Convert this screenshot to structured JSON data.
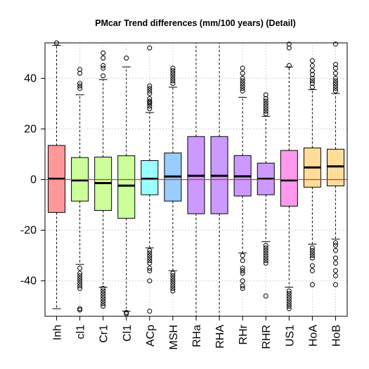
{
  "chart_data": {
    "type": "boxplot",
    "title": "PMcar Trend differences (mm/100 years) (Detail)",
    "xlabel": "",
    "ylabel": "",
    "ylim": [
      -54,
      54
    ],
    "yticks": [
      -40,
      -20,
      0,
      20,
      40
    ],
    "grid": true,
    "reference_line": {
      "y": 0,
      "color": "#e03030"
    },
    "categories": [
      "Inh",
      "cl1",
      "Cr1",
      "Cl1",
      "ACp",
      "MSH",
      "RHa",
      "RHA",
      "RHr",
      "RHR",
      "US1",
      "HoA",
      "HoB"
    ],
    "boxes": [
      {
        "name": "Inh",
        "color": "#ff9999",
        "q1": -13,
        "median": 0.3,
        "q3": 13.5,
        "whisker_low": -51,
        "whisker_high": 53,
        "outliers": [
          54
        ]
      },
      {
        "name": "cl1",
        "color": "#ccff99",
        "q1": -8.5,
        "median": -0.3,
        "q3": 8.7,
        "whisker_low": -33.5,
        "whisker_high": 33.5,
        "outliers": [
          36,
          37,
          38,
          42,
          43.5,
          -35,
          -37,
          -38,
          -39,
          -40,
          -41,
          -42,
          -43,
          -51,
          -51.5
        ]
      },
      {
        "name": "Cr1",
        "color": "#ccff99",
        "q1": -12.2,
        "median": -1.4,
        "q3": 8.9,
        "whisker_low": -42.5,
        "whisker_high": 39.5,
        "outliers": [
          41,
          44,
          45,
          48,
          50,
          -43,
          -44,
          -45,
          -46,
          -47,
          -48,
          -49,
          -50
        ]
      },
      {
        "name": "Cl1",
        "color": "#ccff99",
        "q1": -15.3,
        "median": -2.4,
        "q3": 9.4,
        "whisker_low": -52,
        "whisker_high": 44.5,
        "outliers": [
          48,
          -52.5,
          -53
        ]
      },
      {
        "name": "ACp",
        "color": "#99ffff",
        "q1": -6,
        "median": 0.3,
        "q3": 7.5,
        "whisker_low": -27,
        "whisker_high": 26.5,
        "outliers": [
          28,
          29,
          30,
          30.5,
          31,
          32,
          34,
          35,
          36,
          37,
          52,
          -28,
          -29,
          -30,
          -31,
          -32,
          -33,
          -35,
          -36,
          -40,
          -52
        ]
      },
      {
        "name": "MSH",
        "color": "#99ccff",
        "q1": -8.5,
        "median": 1.2,
        "q3": 10.5,
        "whisker_low": -36,
        "whisker_high": 36.5,
        "outliers": [
          38,
          39,
          40,
          41,
          42,
          43,
          44,
          -37,
          -38,
          -39,
          -40,
          -41,
          -42,
          -43,
          -44
        ]
      },
      {
        "name": "RHa",
        "color": "#cc99ff",
        "q1": -13.5,
        "median": 1.5,
        "q3": 17,
        "whisker_low": -54,
        "whisker_high": 54,
        "outliers": []
      },
      {
        "name": "RHA",
        "color": "#cc99ff",
        "q1": -13.5,
        "median": 1.5,
        "q3": 17,
        "whisker_low": -54,
        "whisker_high": 54,
        "outliers": []
      },
      {
        "name": "RHr",
        "color": "#cc99ff",
        "q1": -6.5,
        "median": 1.3,
        "q3": 9.5,
        "whisker_low": -29,
        "whisker_high": 32.5,
        "outliers": [
          35,
          36,
          37,
          38,
          39,
          40,
          42,
          44,
          -30,
          -32,
          -35,
          -36,
          -37,
          -40,
          -42,
          -43
        ]
      },
      {
        "name": "RHR",
        "color": "#cc99ff",
        "q1": -6,
        "median": 0.3,
        "q3": 6.5,
        "whisker_low": -24.5,
        "whisker_high": 25,
        "outliers": [
          26,
          27,
          28,
          29,
          30,
          31,
          32,
          33.5,
          -26,
          -27,
          -28,
          -29,
          -30,
          -31,
          -32,
          -33,
          -46
        ]
      },
      {
        "name": "US1",
        "color": "#ff99ee",
        "q1": -10.5,
        "median": -0.3,
        "q3": 11.5,
        "whisker_low": -42.5,
        "whisker_high": 44.5,
        "outliers": [
          45,
          52,
          53.5,
          -44,
          -45,
          -46,
          -47,
          -48,
          -49,
          -50,
          -51
        ]
      },
      {
        "name": "HoA",
        "color": "#ffdd99",
        "q1": -3,
        "median": 4.8,
        "q3": 12.5,
        "whisker_low": -25.5,
        "whisker_high": 35.5,
        "outliers": [
          36.5,
          38,
          39,
          40,
          41.5,
          43,
          45,
          47,
          -27,
          -28,
          -29,
          -30,
          -31,
          -34,
          -36,
          -41.5
        ]
      },
      {
        "name": "HoB",
        "color": "#ffdd99",
        "q1": -2.5,
        "median": 5.2,
        "q3": 12,
        "whisker_low": -23.5,
        "whisker_high": 34,
        "outliers": [
          35,
          36,
          37,
          38,
          39,
          40,
          42,
          44,
          45.5,
          53.5,
          -25,
          -26,
          -28,
          -31,
          -33,
          -36,
          -38,
          -41.5
        ]
      }
    ]
  }
}
